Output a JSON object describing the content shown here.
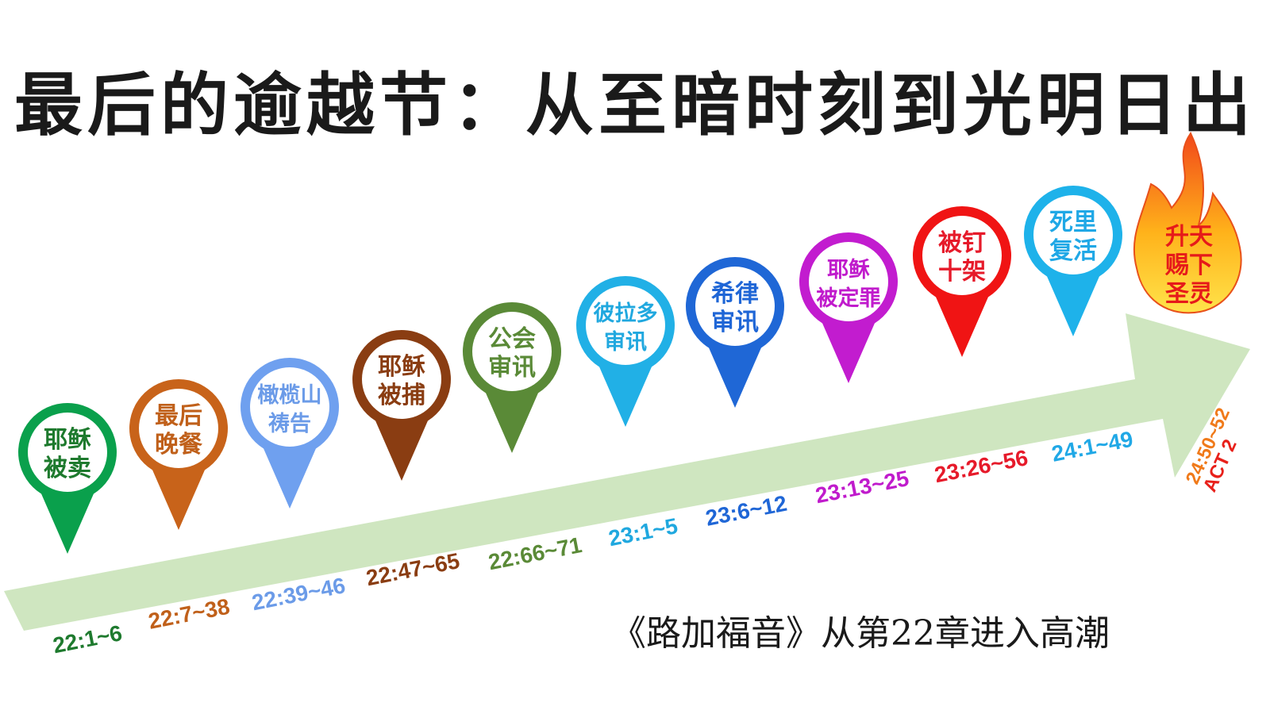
{
  "title": "最后的逾越节：从至暗时刻到光明日出",
  "footer": "《路加福音》从第22章进入高潮",
  "stages": [
    {
      "line1": "耶稣",
      "line2": "被卖",
      "ref": "22:1~6",
      "color": "#0aa04c",
      "text_color": "#1e7a2e"
    },
    {
      "line1": "最后",
      "line2": "晚餐",
      "ref": "22:7~38",
      "color": "#c8631a",
      "text_color": "#c0601a"
    },
    {
      "line1": "橄榄山",
      "line2": "祷告",
      "ref": "22:39~46",
      "color": "#6fa0ef",
      "text_color": "#6b9be8"
    },
    {
      "line1": "耶稣",
      "line2": "被捕",
      "ref": "22:47~65",
      "color": "#8a3d12",
      "text_color": "#8a3d12"
    },
    {
      "line1": "公会",
      "line2": "审讯",
      "ref": "22:66~71",
      "color": "#5a8a37",
      "text_color": "#5a8a37"
    },
    {
      "line1": "彼拉多",
      "line2": "审讯",
      "ref": "23:1~5",
      "color": "#21b0e6",
      "text_color": "#20a8df"
    },
    {
      "line1": "希律",
      "line2": "审讯",
      "ref": "23:6~12",
      "color": "#1f67d6",
      "text_color": "#1f66d6"
    },
    {
      "line1": "耶稣",
      "line2": "被定罪",
      "ref": "23:13~25",
      "color": "#c21ccf",
      "text_color": "#c01bcc"
    },
    {
      "line1": "被钉",
      "line2": "十架",
      "ref": "23:26~56",
      "color": "#f01414",
      "text_color": "#e61a2a"
    },
    {
      "line1": "死里",
      "line2": "复活",
      "ref": "24:1~49",
      "color": "#1eb2ea",
      "text_color": "#20a8e6"
    }
  ],
  "finale": {
    "line1": "升天",
    "line2": "赐下",
    "line3": "圣灵",
    "ref1": "24:50~52",
    "ref2": "ACT 2",
    "ref1_color": "#f07a1a",
    "ref2_color": "#e8201a",
    "text_color": "#e61a1a"
  },
  "arrow_color": "#cfe6c0"
}
